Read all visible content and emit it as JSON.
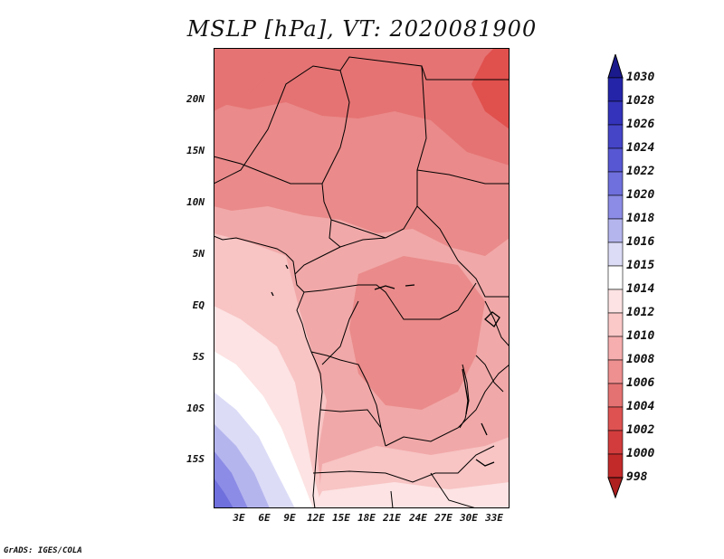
{
  "title": "MSLP [hPa], VT: 2020081900",
  "credit": "GrADS: IGES/COLA",
  "lat_labels": [
    "20N",
    "15N",
    "10N",
    "5N",
    "EQ",
    "5S",
    "10S",
    "15S"
  ],
  "lon_labels": [
    "3E",
    "6E",
    "9E",
    "12E",
    "15E",
    "18E",
    "21E",
    "24E",
    "27E",
    "30E",
    "33E"
  ],
  "colorbar": {
    "levels": [
      "1030",
      "1028",
      "1026",
      "1024",
      "1022",
      "1020",
      "1018",
      "1016",
      "1015",
      "1014",
      "1012",
      "1010",
      "1008",
      "1006",
      "1004",
      "1002",
      "1000",
      "998"
    ],
    "colors": [
      "#1b1a8c",
      "#2424a8",
      "#3333bb",
      "#4545c8",
      "#5757d3",
      "#6f6fdd",
      "#8c8ce6",
      "#b5b5ee",
      "#dcdcf7",
      "#ffffff",
      "#fde3e3",
      "#fcc9c9",
      "#f7aeae",
      "#ee9090",
      "#e57272",
      "#de5252",
      "#d23c3c",
      "#c22a2a",
      "#ae1f1f"
    ]
  },
  "colors": {
    "deep_red": "#e0504d",
    "red": "#e57373",
    "med_red": "#ea8a8a",
    "light_red": "#f1a8a8",
    "pink": "#f8c4c4",
    "pale_pink": "#fde3e3",
    "white": "#ffffff",
    "pale_blue": "#dcdcf7",
    "light_blue": "#b5b5ee",
    "blue": "#8c8ce6",
    "dark_blue": "#6f6fdd"
  }
}
